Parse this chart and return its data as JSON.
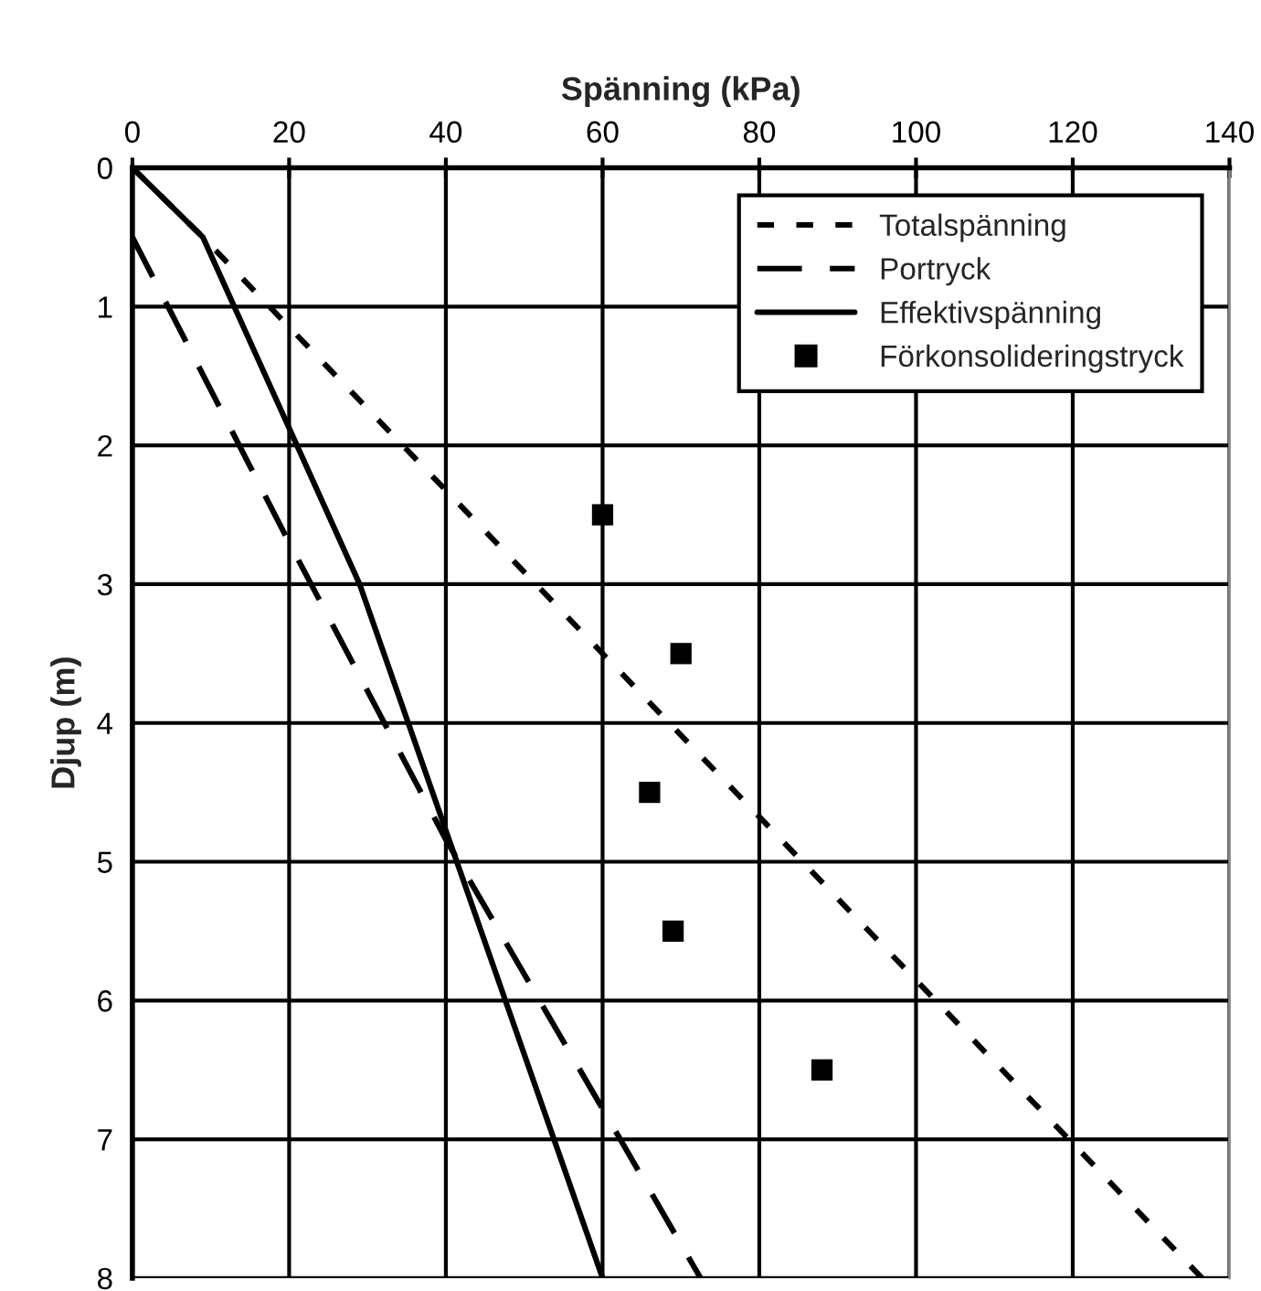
{
  "chart_data": {
    "type": "line",
    "xlabel": "Spänning (kPa)",
    "ylabel": "Djup (m)",
    "xlim": [
      0,
      140
    ],
    "xticks": [
      0,
      20,
      40,
      60,
      80,
      100,
      120,
      140
    ],
    "ylim": [
      8,
      0
    ],
    "yticks": [
      0,
      1,
      2,
      3,
      4,
      5,
      6,
      7,
      8
    ],
    "series": [
      {
        "name": "Totalspänning",
        "color": "#000000",
        "line_style": "dotted",
        "x": [
          0,
          9,
          136.5
        ],
        "values": [
          0,
          0.5,
          8
        ]
      },
      {
        "name": "Portryck",
        "color": "#000000",
        "line_style": "dashed",
        "x": [
          0,
          20,
          40,
          60,
          72.5
        ],
        "values": [
          0.5,
          2.7,
          4.84,
          6.78,
          8
        ]
      },
      {
        "name": "Effektivspänning",
        "color": "#000000",
        "line_style": "solid",
        "x": [
          0,
          9,
          29,
          60
        ],
        "values": [
          0,
          0.5,
          3,
          8
        ]
      },
      {
        "name": "Förkonsolideringstryck",
        "type": "scatter",
        "marker": "square",
        "color": "#000000",
        "x": [
          60,
          70,
          66,
          69,
          88
        ],
        "values": [
          2.5,
          3.5,
          4.5,
          5.5,
          6.5
        ]
      }
    ],
    "grid": true,
    "legend": "top right"
  }
}
